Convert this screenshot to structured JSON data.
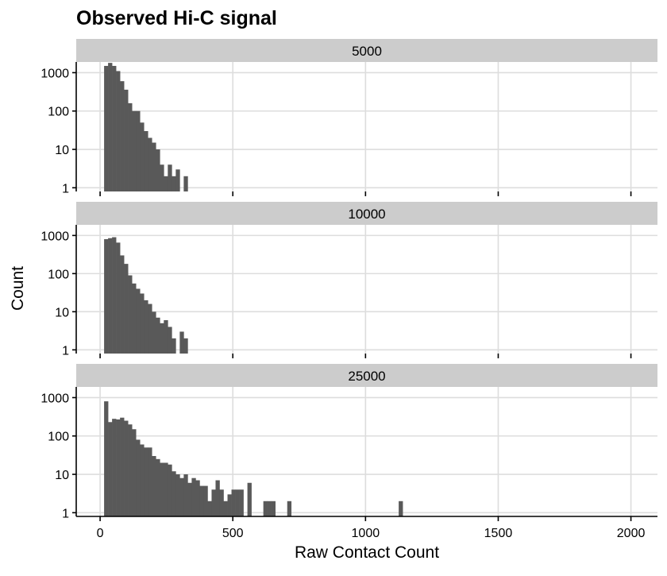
{
  "chart_data": {
    "type": "bar",
    "title": "Observed Hi-C signal",
    "xlabel": "Raw Contact Count",
    "ylabel": "Count",
    "x_scale": "linear",
    "y_scale": "log10",
    "xlim": [
      -90,
      2100
    ],
    "x_ticks": [
      0,
      500,
      1000,
      1500,
      2000
    ],
    "x_tick_labels": [
      "0",
      "500",
      "1000",
      "1500",
      "2000"
    ],
    "ylim": [
      0.8,
      1900
    ],
    "y_ticks": [
      1,
      10,
      100,
      1000
    ],
    "y_tick_labels": [
      "1",
      "10",
      "100",
      "1000"
    ],
    "bin_width": 15,
    "grid": true,
    "facets": [
      {
        "label": "5000",
        "bins": [
          [
            15,
            30,
            1500
          ],
          [
            30,
            45,
            1800
          ],
          [
            45,
            60,
            1500
          ],
          [
            60,
            75,
            1100
          ],
          [
            75,
            90,
            600
          ],
          [
            90,
            105,
            360
          ],
          [
            105,
            120,
            160
          ],
          [
            120,
            135,
            100
          ],
          [
            135,
            150,
            100
          ],
          [
            150,
            165,
            50
          ],
          [
            165,
            180,
            30
          ],
          [
            180,
            195,
            20
          ],
          [
            195,
            210,
            15
          ],
          [
            210,
            225,
            10
          ],
          [
            225,
            240,
            4
          ],
          [
            240,
            255,
            2
          ],
          [
            255,
            270,
            4
          ],
          [
            270,
            285,
            2
          ],
          [
            285,
            300,
            3
          ],
          [
            315,
            330,
            2
          ]
        ]
      },
      {
        "label": "10000",
        "bins": [
          [
            15,
            30,
            800
          ],
          [
            30,
            45,
            850
          ],
          [
            45,
            60,
            900
          ],
          [
            60,
            75,
            650
          ],
          [
            75,
            90,
            300
          ],
          [
            90,
            105,
            180
          ],
          [
            105,
            120,
            90
          ],
          [
            120,
            135,
            55
          ],
          [
            135,
            150,
            40
          ],
          [
            150,
            165,
            30
          ],
          [
            165,
            180,
            20
          ],
          [
            180,
            195,
            16
          ],
          [
            195,
            210,
            10
          ],
          [
            210,
            225,
            7
          ],
          [
            225,
            240,
            5
          ],
          [
            240,
            255,
            6
          ],
          [
            255,
            270,
            4
          ],
          [
            270,
            285,
            2
          ],
          [
            300,
            315,
            3
          ],
          [
            315,
            330,
            2
          ]
        ]
      },
      {
        "label": "25000",
        "bins": [
          [
            15,
            30,
            800
          ],
          [
            30,
            45,
            230
          ],
          [
            45,
            60,
            280
          ],
          [
            60,
            75,
            270
          ],
          [
            75,
            90,
            300
          ],
          [
            90,
            105,
            250
          ],
          [
            105,
            120,
            200
          ],
          [
            120,
            135,
            150
          ],
          [
            135,
            150,
            80
          ],
          [
            150,
            165,
            60
          ],
          [
            165,
            180,
            50
          ],
          [
            180,
            195,
            50
          ],
          [
            195,
            210,
            30
          ],
          [
            210,
            225,
            25
          ],
          [
            225,
            240,
            20
          ],
          [
            240,
            255,
            20
          ],
          [
            255,
            270,
            18
          ],
          [
            270,
            285,
            12
          ],
          [
            285,
            300,
            10
          ],
          [
            300,
            315,
            8
          ],
          [
            315,
            330,
            10
          ],
          [
            330,
            345,
            6
          ],
          [
            345,
            360,
            8
          ],
          [
            360,
            375,
            7
          ],
          [
            375,
            390,
            5
          ],
          [
            390,
            405,
            5
          ],
          [
            405,
            420,
            2
          ],
          [
            420,
            435,
            4
          ],
          [
            435,
            450,
            7
          ],
          [
            450,
            465,
            4
          ],
          [
            465,
            480,
            2
          ],
          [
            480,
            495,
            3
          ],
          [
            495,
            510,
            4
          ],
          [
            510,
            525,
            4
          ],
          [
            525,
            540,
            4
          ],
          [
            555,
            570,
            6
          ],
          [
            615,
            630,
            2
          ],
          [
            630,
            645,
            2
          ],
          [
            645,
            660,
            2
          ],
          [
            705,
            720,
            2
          ],
          [
            1125,
            1140,
            2
          ]
        ]
      }
    ]
  },
  "colors": {
    "background": "#ffffff",
    "strip": "#cccccc",
    "bar": "#595959",
    "grid": "#dddddd",
    "axis": "#000000",
    "text": "#000000"
  }
}
